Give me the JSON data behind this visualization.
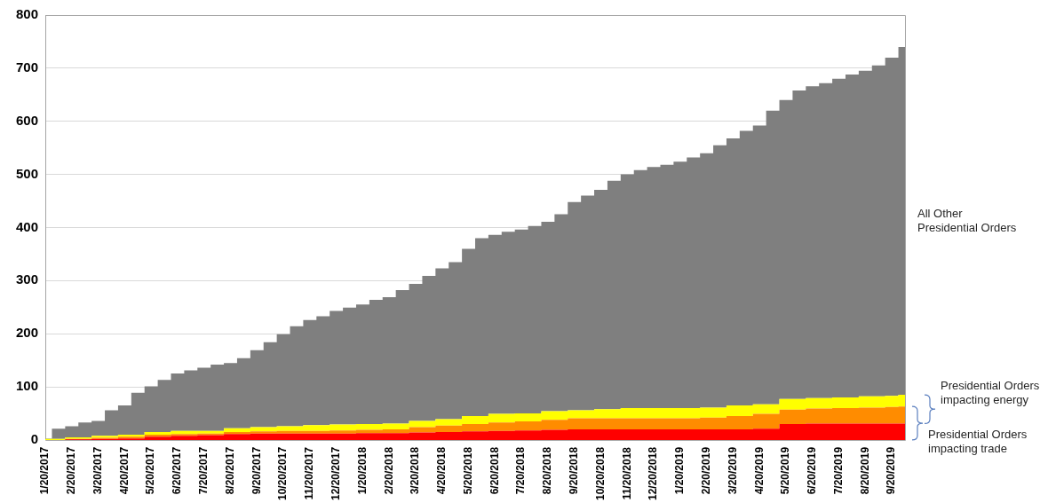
{
  "chart_data": {
    "type": "area",
    "stacked": true,
    "grid": "y",
    "ylim": [
      0,
      800
    ],
    "yticks": [
      0,
      100,
      200,
      300,
      400,
      500,
      600,
      700,
      800
    ],
    "categories": [
      "1/20/2017",
      null,
      "2/20/2017",
      null,
      "3/20/2017",
      null,
      "4/20/2017",
      null,
      "5/20/2017",
      null,
      "6/20/2017",
      null,
      "7/20/2017",
      null,
      "8/20/2017",
      null,
      "9/20/2017",
      null,
      "10/20/2017",
      null,
      "11/20/2017",
      null,
      "12/20/2017",
      null,
      "1/20/2018",
      null,
      "2/20/2018",
      null,
      "3/20/2018",
      null,
      "4/20/2018",
      null,
      "5/20/2018",
      null,
      "6/20/2018",
      null,
      "7/20/2018",
      null,
      "8/20/2018",
      null,
      "9/20/2018",
      null,
      "10/20/2018",
      null,
      "11/20/2018",
      null,
      "12/20/2018",
      null,
      "1/20/2019",
      null,
      "2/20/2019",
      null,
      "3/20/2019",
      null,
      "4/20/2019",
      null,
      "5/20/2019",
      null,
      "6/20/2019",
      null,
      "7/20/2019",
      null,
      "8/20/2019",
      null,
      "9/20/2019",
      null
    ],
    "series": [
      {
        "name": "Presidential Orders impacting trade",
        "color": "#ff0000",
        "values": [
          0,
          0,
          1,
          1,
          2,
          2,
          3,
          3,
          6,
          6,
          8,
          8,
          9,
          9,
          11,
          11,
          12,
          12,
          12,
          12,
          12,
          12,
          12,
          12,
          13,
          13,
          13,
          13,
          14,
          14,
          15,
          15,
          16,
          16,
          17,
          17,
          18,
          18,
          19,
          19,
          20,
          20,
          20,
          20,
          20,
          20,
          20,
          20,
          20,
          20,
          20,
          20,
          20,
          20,
          21,
          21,
          30,
          30,
          31,
          31,
          31,
          31,
          31,
          31,
          31,
          31
        ]
      },
      {
        "color": "#ff8c00",
        "values": [
          0,
          0,
          1,
          1,
          2,
          2,
          3,
          3,
          4,
          4,
          3,
          3,
          3,
          3,
          4,
          4,
          4,
          4,
          5,
          5,
          5,
          5,
          6,
          6,
          6,
          6,
          7,
          7,
          10,
          10,
          12,
          12,
          14,
          14,
          16,
          16,
          17,
          17,
          19,
          19,
          21,
          21,
          21,
          21,
          21,
          21,
          21,
          21,
          21,
          21,
          22,
          22,
          25,
          25,
          28,
          28,
          27,
          27,
          28,
          28,
          29,
          29,
          30,
          30,
          31,
          32
        ]
      },
      {
        "name": "Presidential Orders impacting energy",
        "color": "#ffff00",
        "values": [
          2,
          2,
          3,
          3,
          4,
          4,
          4,
          4,
          5,
          5,
          6,
          6,
          5,
          5,
          7,
          7,
          8,
          8,
          9,
          9,
          11,
          11,
          11,
          11,
          11,
          11,
          11,
          11,
          12,
          12,
          12,
          12,
          15,
          15,
          16,
          16,
          15,
          15,
          16,
          16,
          15,
          15,
          17,
          17,
          19,
          19,
          19,
          19,
          19,
          19,
          19,
          19,
          20,
          20,
          18,
          18,
          20,
          20,
          20,
          20,
          20,
          20,
          21,
          21,
          21,
          22
        ]
      },
      {
        "name": "All Other Presidential Orders",
        "color": "#7f7f7f",
        "values": [
          1,
          19,
          21,
          28,
          28,
          48,
          55,
          79,
          86,
          98,
          108,
          114,
          119,
          125,
          123,
          132,
          145,
          160,
          173,
          188,
          198,
          205,
          214,
          220,
          225,
          234,
          238,
          251,
          258,
          273,
          284,
          296,
          315,
          335,
          337,
          343,
          346,
          353,
          357,
          371,
          392,
          404,
          413,
          430,
          440,
          448,
          454,
          458,
          464,
          472,
          479,
          494,
          503,
          517,
          525,
          553,
          563,
          581,
          587,
          593,
          600,
          608,
          613,
          623,
          637,
          655
        ]
      }
    ]
  }
}
